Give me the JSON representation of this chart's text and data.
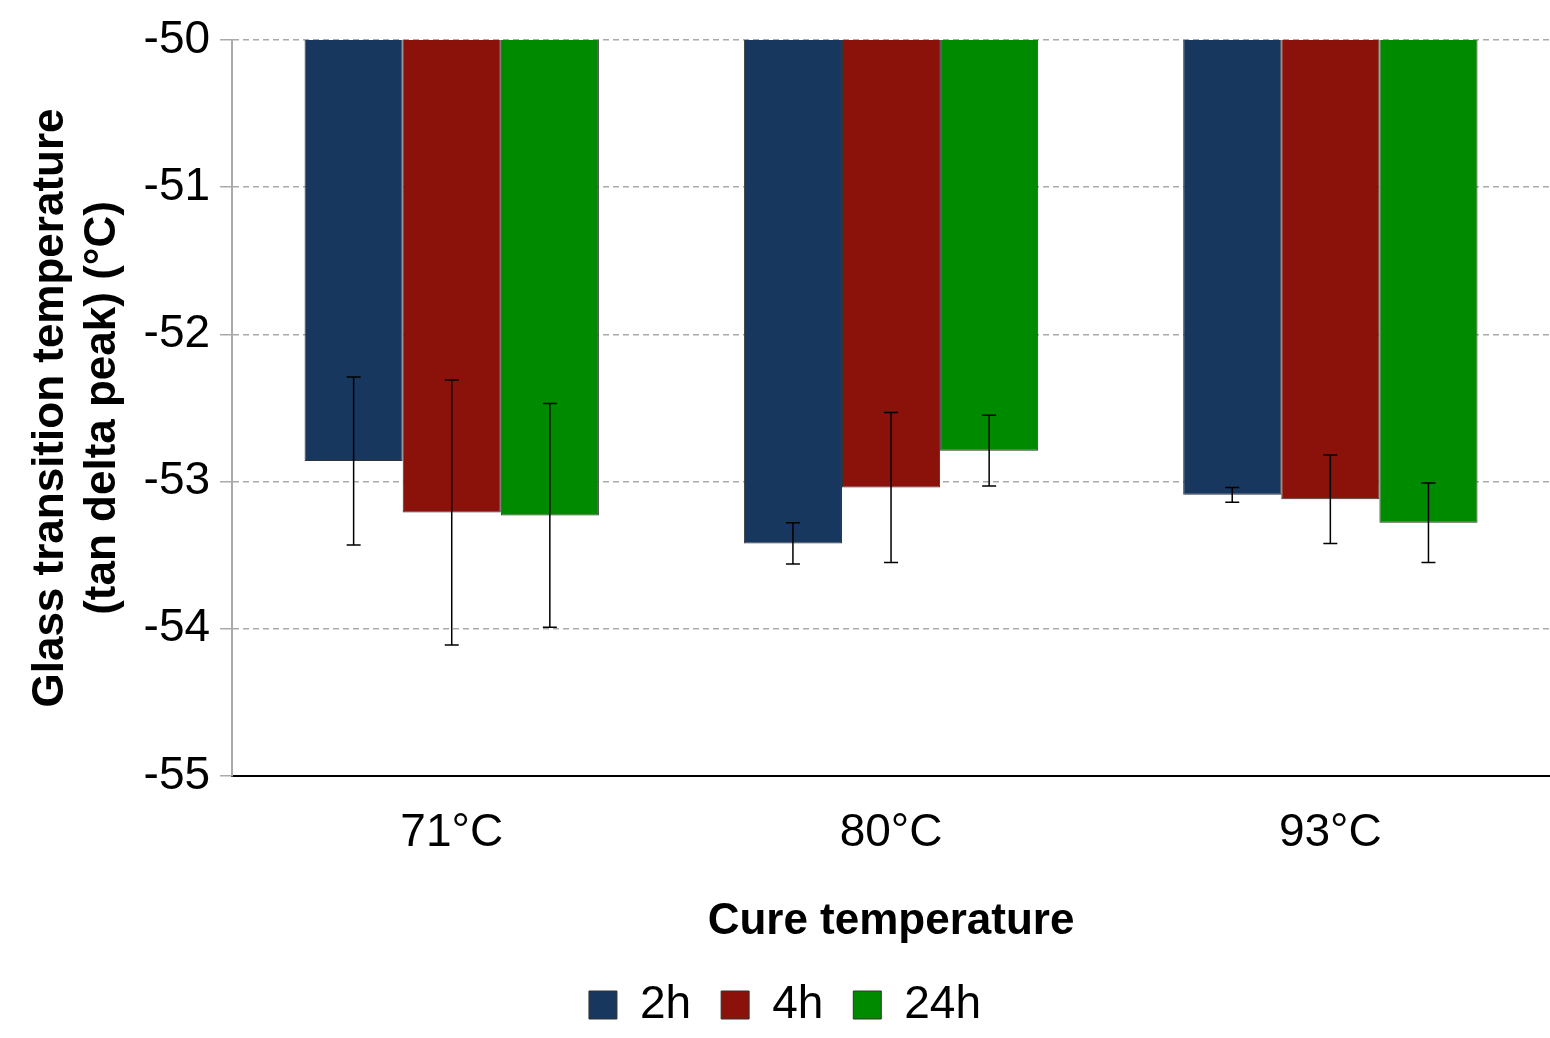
{
  "chart_data": {
    "type": "bar",
    "xlabel": "Cure temperature",
    "ylabel": "Glass transition temperature\n(tan delta peak) (°C)",
    "categories": [
      "71°C",
      "80°C",
      "93°C"
    ],
    "series": [
      {
        "name": "2h",
        "color": "#17375e",
        "values": [
          -52.86,
          -53.42,
          -53.09
        ],
        "errors": [
          0.57,
          0.14,
          0.05
        ]
      },
      {
        "name": "4h",
        "color": "#8b120b",
        "values": [
          -53.21,
          -53.04,
          -53.12
        ],
        "errors": [
          0.9,
          0.51,
          0.3
        ]
      },
      {
        "name": "24h",
        "color": "#008a00",
        "values": [
          -53.23,
          -52.79,
          -53.28
        ],
        "errors": [
          0.76,
          0.24,
          0.27
        ]
      }
    ],
    "ylim": [
      -55,
      -50
    ],
    "yticks": [
      -55,
      -54,
      -53,
      -52,
      -51,
      -50
    ],
    "grid": "y",
    "legend": "bottom"
  }
}
